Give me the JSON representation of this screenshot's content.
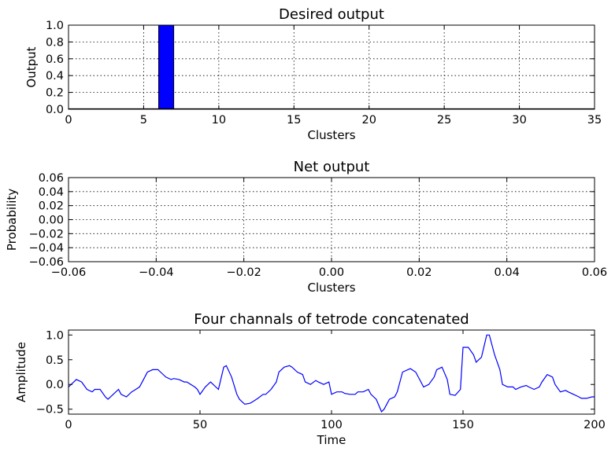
{
  "chart_data": [
    {
      "type": "bar",
      "title": "Desired output",
      "xlabel": "Clusters",
      "ylabel": "Output",
      "xlim": [
        0,
        35
      ],
      "ylim": [
        0,
        1.0
      ],
      "xticks": [
        "0",
        "5",
        "10",
        "15",
        "20",
        "25",
        "30",
        "35"
      ],
      "yticks": [
        "0.0",
        "0.2",
        "0.4",
        "0.6",
        "0.8",
        "1.0"
      ],
      "bars": [
        {
          "x_start": 6,
          "x_end": 7,
          "value": 1.0
        }
      ],
      "bar_color": "#0000ff",
      "grid": true
    },
    {
      "type": "bar",
      "title": "Net output",
      "xlabel": "Clusters",
      "ylabel": "Probability",
      "xlim": [
        -0.06,
        0.06
      ],
      "ylim": [
        -0.06,
        0.06
      ],
      "xticks": [
        "−0.06",
        "−0.04",
        "−0.02",
        "0.00",
        "0.02",
        "0.04",
        "0.06"
      ],
      "yticks": [
        "−0.06",
        "−0.04",
        "−0.02",
        "0.00",
        "0.02",
        "0.04",
        "0.06"
      ],
      "bars": [],
      "grid": true
    },
    {
      "type": "line",
      "title": "Four channals of tetrode concatenated",
      "xlabel": "Time",
      "ylabel": "Amplitude",
      "xlim": [
        0,
        200
      ],
      "ylim": [
        -0.6,
        1.1
      ],
      "xticks": [
        "0",
        "50",
        "100",
        "150",
        "200"
      ],
      "yticks": [
        "−0.5",
        "0.0",
        "0.5",
        "1.0"
      ],
      "line_color": "#0000ff",
      "grid": false,
      "x": [
        0,
        2,
        3,
        5,
        7,
        9,
        10,
        12,
        14,
        15,
        17,
        19,
        20,
        22,
        24,
        25,
        27,
        29,
        30,
        32,
        34,
        35,
        37,
        39,
        40,
        42,
        44,
        45,
        48,
        49,
        50,
        52,
        54,
        55,
        57,
        59,
        60,
        62,
        64,
        65,
        67,
        69,
        70,
        72,
        74,
        75,
        77,
        79,
        80,
        82,
        84,
        85,
        87,
        89,
        90,
        92,
        94,
        95,
        97,
        99,
        100,
        102,
        104,
        105,
        107,
        109,
        110,
        112,
        114,
        115,
        117,
        119,
        120,
        122,
        124,
        125,
        127,
        129,
        130,
        132,
        134,
        135,
        137,
        139,
        140,
        142,
        144,
        145,
        147,
        149,
        150,
        152,
        154,
        155,
        157,
        159,
        160,
        162,
        164,
        165,
        167,
        169,
        170,
        172,
        174,
        175,
        177,
        179,
        180,
        182,
        184,
        185,
        187,
        189,
        190,
        192,
        194,
        195,
        197,
        199,
        200
      ],
      "y": [
        -0.05,
        0.05,
        0.1,
        0.05,
        -0.1,
        -0.15,
        -0.1,
        -0.1,
        -0.25,
        -0.3,
        -0.2,
        -0.1,
        -0.2,
        -0.25,
        -0.15,
        -0.12,
        -0.05,
        0.15,
        0.25,
        0.3,
        0.3,
        0.25,
        0.15,
        0.1,
        0.12,
        0.1,
        0.05,
        0.05,
        -0.05,
        -0.1,
        -0.2,
        -0.05,
        0.05,
        0.0,
        -0.1,
        0.35,
        0.38,
        0.15,
        -0.2,
        -0.3,
        -0.4,
        -0.38,
        -0.35,
        -0.28,
        -0.2,
        -0.2,
        -0.1,
        0.05,
        0.25,
        0.35,
        0.38,
        0.35,
        0.25,
        0.2,
        0.05,
        0.0,
        0.08,
        0.05,
        0.0,
        0.05,
        -0.2,
        -0.15,
        -0.15,
        -0.18,
        -0.2,
        -0.2,
        -0.15,
        -0.15,
        -0.1,
        -0.2,
        -0.3,
        -0.55,
        -0.5,
        -0.3,
        -0.25,
        -0.15,
        0.25,
        0.3,
        0.32,
        0.25,
        0.05,
        -0.05,
        0.0,
        0.15,
        0.3,
        0.35,
        0.1,
        -0.2,
        -0.22,
        -0.1,
        0.75,
        0.75,
        0.6,
        0.45,
        0.55,
        1.0,
        1.0,
        0.6,
        0.3,
        0.0,
        -0.05,
        -0.05,
        -0.1,
        -0.05,
        -0.02,
        -0.05,
        -0.1,
        -0.05,
        0.05,
        0.2,
        0.15,
        0.0,
        -0.15,
        -0.12,
        -0.15,
        -0.2,
        -0.25,
        -0.28,
        -0.28,
        -0.25,
        -0.25
      ]
    }
  ]
}
